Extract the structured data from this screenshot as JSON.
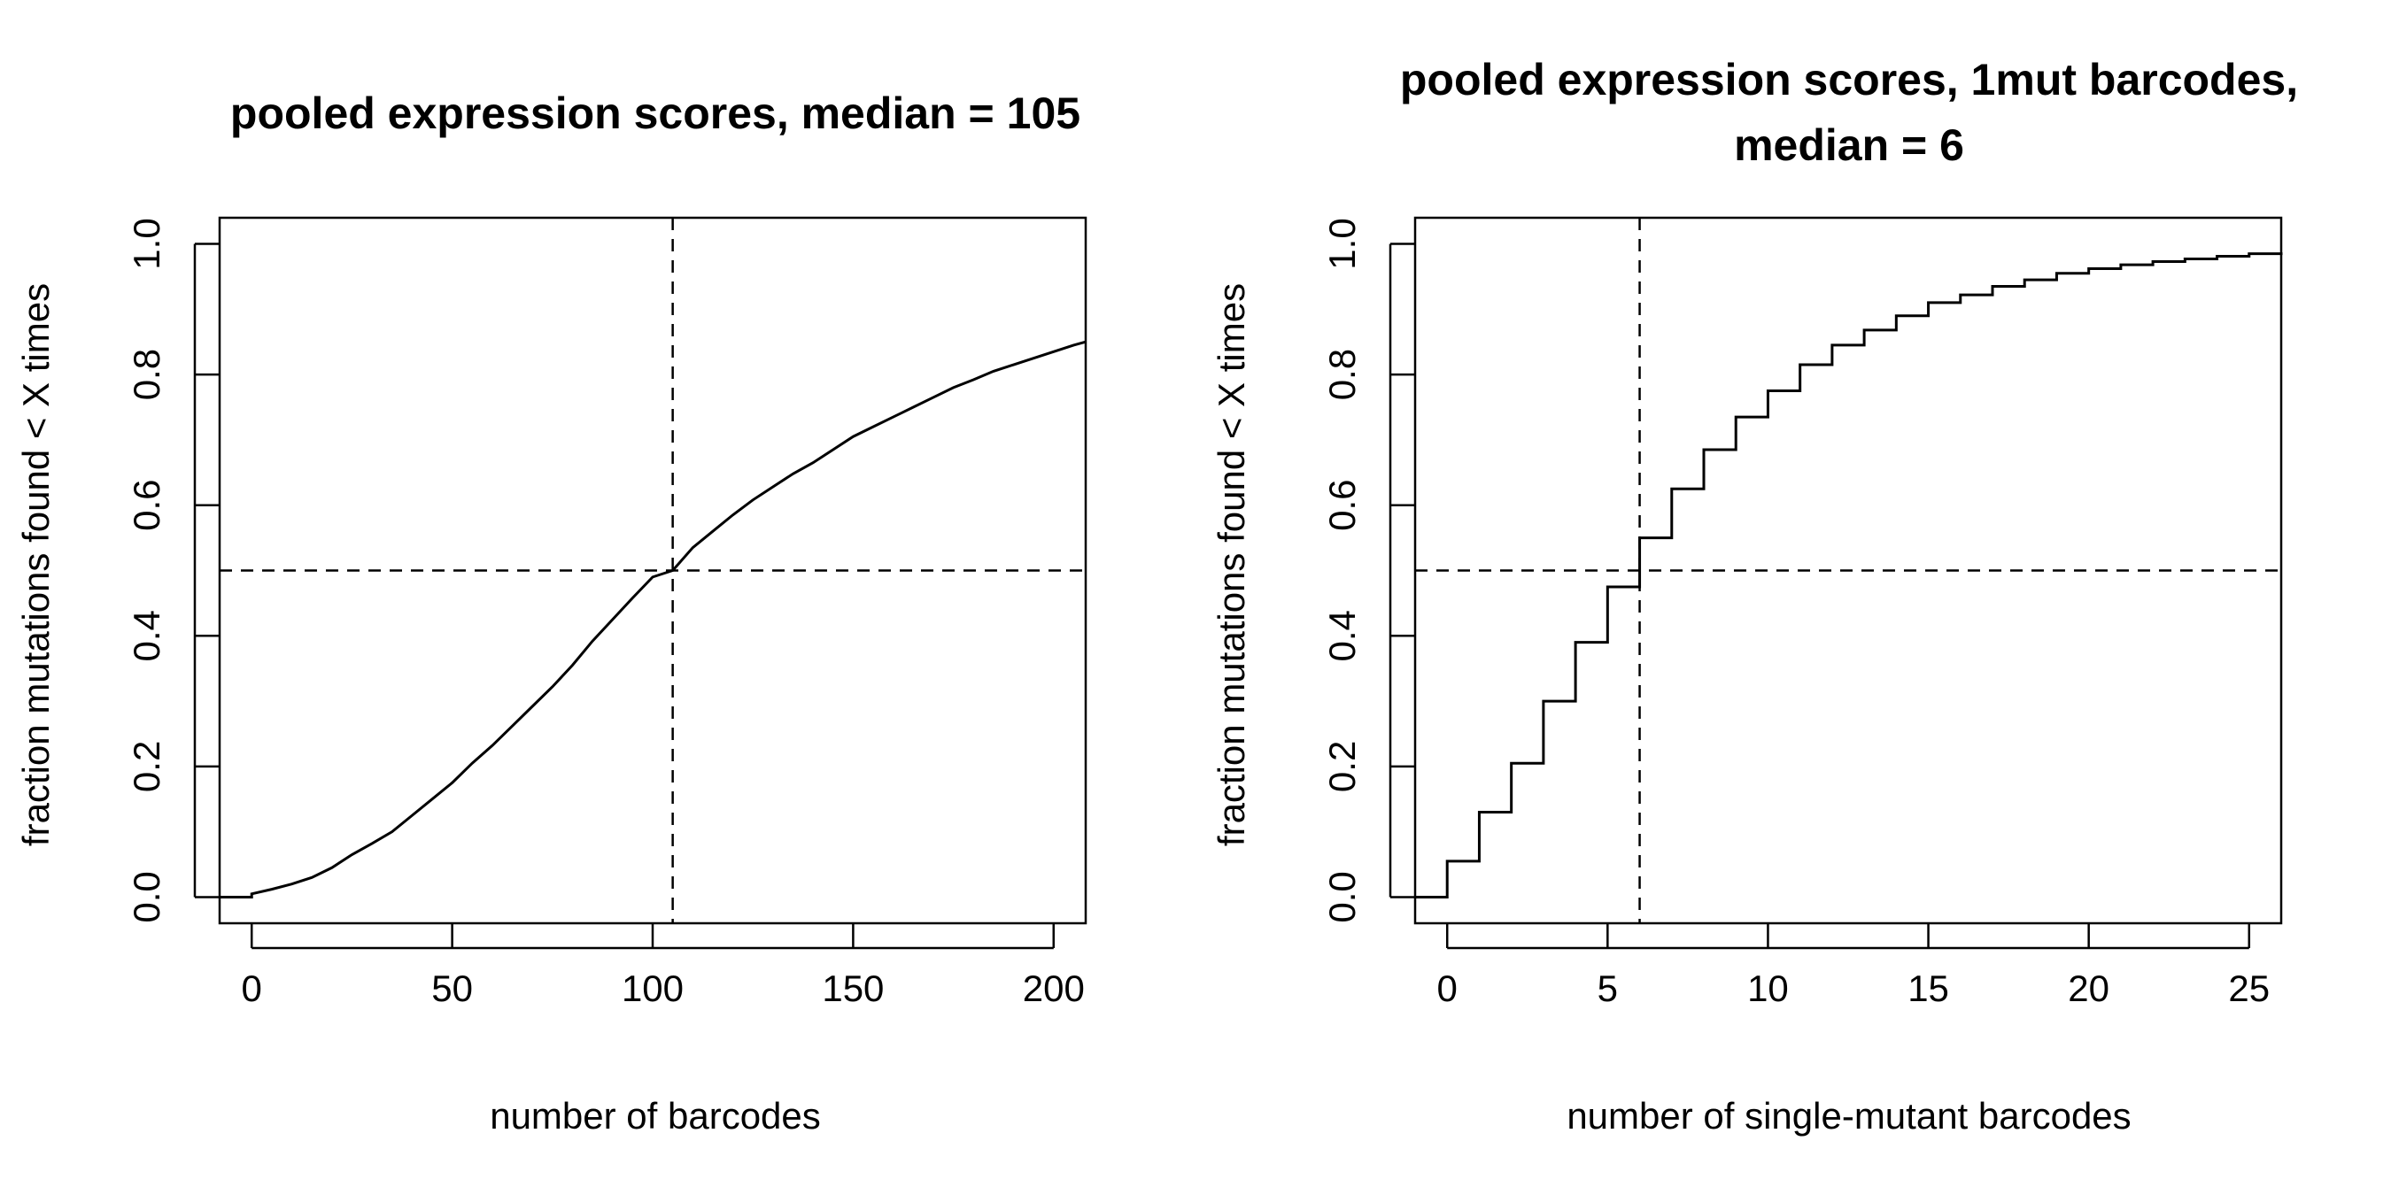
{
  "chart_data": [
    {
      "type": "line",
      "title": "pooled expression scores, median = 105",
      "xlabel": "number of barcodes",
      "ylabel": "fraction mutations found < X times",
      "xlim": [
        -8,
        208
      ],
      "ylim": [
        -0.04,
        1.04
      ],
      "xticks": [
        0,
        50,
        100,
        150,
        200
      ],
      "xtick_labels": [
        "0",
        "50",
        "100",
        "150",
        "200"
      ],
      "yticks": [
        0.0,
        0.2,
        0.4,
        0.6,
        0.8,
        1.0
      ],
      "ytick_labels": [
        "0.0",
        "0.2",
        "0.4",
        "0.6",
        "0.8",
        "1.0"
      ],
      "vline": 105,
      "hline": 0.5,
      "grid": false,
      "series": [
        {
          "x": [
            -8,
            0,
            0,
            5,
            10,
            15,
            20,
            25,
            30,
            35,
            40,
            45,
            50,
            55,
            60,
            65,
            70,
            75,
            80,
            85,
            90,
            95,
            100,
            105,
            110,
            115,
            120,
            125,
            130,
            135,
            140,
            145,
            150,
            155,
            160,
            165,
            170,
            175,
            180,
            185,
            190,
            195,
            200,
            205,
            208
          ],
          "y": [
            0.0,
            0.0,
            0.005,
            0.012,
            0.02,
            0.03,
            0.045,
            0.065,
            0.082,
            0.1,
            0.125,
            0.15,
            0.175,
            0.205,
            0.232,
            0.262,
            0.292,
            0.322,
            0.355,
            0.392,
            0.425,
            0.458,
            0.49,
            0.5,
            0.535,
            0.56,
            0.585,
            0.608,
            0.628,
            0.648,
            0.665,
            0.685,
            0.705,
            0.72,
            0.735,
            0.75,
            0.765,
            0.78,
            0.792,
            0.805,
            0.815,
            0.825,
            0.835,
            0.845,
            0.85
          ]
        }
      ]
    },
    {
      "type": "line",
      "title": "pooled expression scores, 1mut barcodes, median = 6",
      "title_lines": [
        "pooled expression scores, 1mut barcodes,",
        "median = 6"
      ],
      "xlabel": "number of single-mutant barcodes",
      "ylabel": "fraction mutations found < X times",
      "xlim": [
        -1,
        26
      ],
      "ylim": [
        -0.04,
        1.04
      ],
      "xticks": [
        0,
        5,
        10,
        15,
        20,
        25
      ],
      "xtick_labels": [
        "0",
        "5",
        "10",
        "15",
        "20",
        "25"
      ],
      "yticks": [
        0.0,
        0.2,
        0.4,
        0.6,
        0.8,
        1.0
      ],
      "ytick_labels": [
        "0.0",
        "0.2",
        "0.4",
        "0.6",
        "0.8",
        "1.0"
      ],
      "vline": 6,
      "hline": 0.5,
      "grid": false,
      "series": [
        {
          "step": true,
          "x": [
            -1,
            0,
            1,
            2,
            3,
            4,
            5,
            6,
            7,
            8,
            9,
            10,
            11,
            12,
            13,
            14,
            15,
            16,
            17,
            18,
            19,
            20,
            21,
            22,
            23,
            24,
            25,
            26
          ],
          "y": [
            0.0,
            0.055,
            0.13,
            0.205,
            0.3,
            0.39,
            0.475,
            0.55,
            0.625,
            0.685,
            0.735,
            0.775,
            0.815,
            0.845,
            0.868,
            0.89,
            0.91,
            0.922,
            0.935,
            0.945,
            0.955,
            0.962,
            0.968,
            0.973,
            0.977,
            0.981,
            0.985,
            0.987
          ]
        }
      ]
    }
  ]
}
